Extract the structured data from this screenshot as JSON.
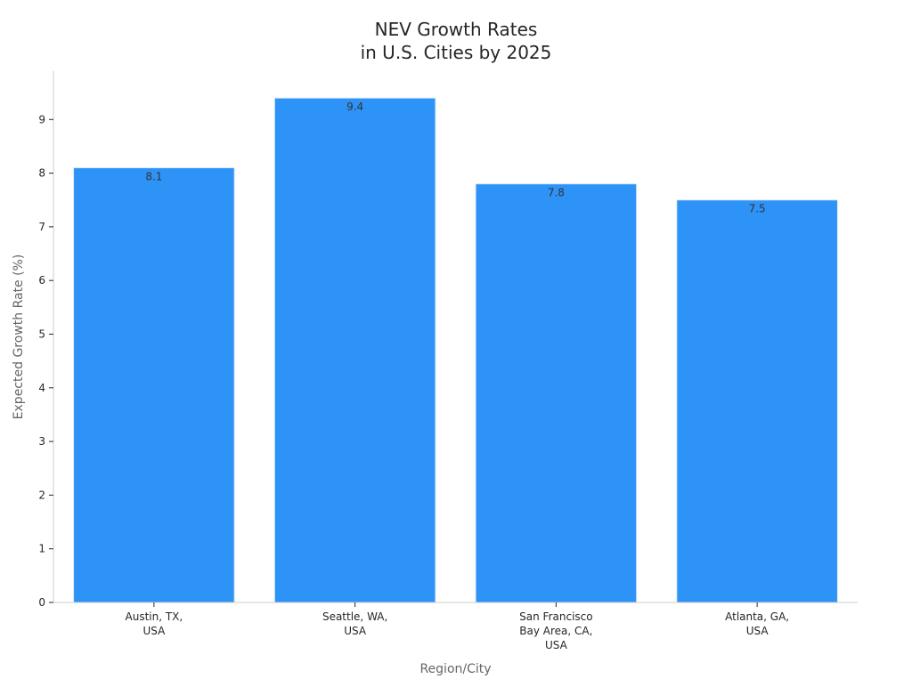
{
  "chart_data": {
    "type": "bar",
    "title": [
      "NEV Growth Rates",
      "in U.S. Cities by 2025"
    ],
    "xlabel": "Region/City",
    "ylabel": "Expected Growth Rate (%)",
    "categories": [
      [
        "Austin, TX,",
        "USA"
      ],
      [
        "Seattle, WA,",
        "USA"
      ],
      [
        "San Francisco",
        "Bay Area, CA,",
        "USA"
      ],
      [
        "Atlanta, GA,",
        "USA"
      ]
    ],
    "values": [
      8.1,
      9.4,
      7.8,
      7.5
    ],
    "data_labels": [
      "8.1",
      "9.4",
      "7.8",
      "7.5"
    ],
    "yticks": [
      0,
      1,
      2,
      3,
      4,
      5,
      6,
      7,
      8,
      9
    ],
    "ylim": [
      0,
      9.9
    ],
    "grid": false,
    "bar_color": "#2e93f7"
  }
}
